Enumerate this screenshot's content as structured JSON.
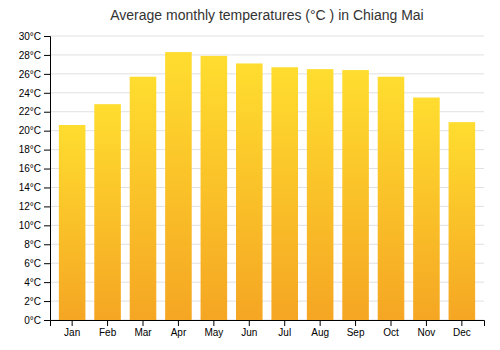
{
  "chart_data": {
    "type": "bar",
    "title": "Average monthly temperatures (°C ) in Chiang Mai",
    "categories": [
      "Jan",
      "Feb",
      "Mar",
      "Apr",
      "May",
      "Jun",
      "Jul",
      "Aug",
      "Sep",
      "Oct",
      "Nov",
      "Dec"
    ],
    "values": [
      20.6,
      22.8,
      25.7,
      28.3,
      27.9,
      27.1,
      26.7,
      26.5,
      26.4,
      25.7,
      23.5,
      20.9
    ],
    "color": "#F5A623",
    "ylim": [
      0,
      30
    ],
    "yticks": [
      {
        "value": 0,
        "label": "0°C"
      },
      {
        "value": 2,
        "label": "2°C"
      },
      {
        "value": 4,
        "label": "4°C"
      },
      {
        "value": 6,
        "label": "6°C"
      },
      {
        "value": 8,
        "label": "8°C"
      },
      {
        "value": 10,
        "label": "10°C"
      },
      {
        "value": 12,
        "label": "12°C"
      },
      {
        "value": 14,
        "label": "14°C"
      },
      {
        "value": 16,
        "label": "16°C"
      },
      {
        "value": 18,
        "label": "18°C"
      },
      {
        "value": 20,
        "label": "20°C"
      },
      {
        "value": 22,
        "label": "22°C"
      },
      {
        "value": 24,
        "label": "24°C"
      },
      {
        "value": 26,
        "label": "26°C"
      },
      {
        "value": 28,
        "label": "28°C"
      },
      {
        "value": 30,
        "label": "30°C"
      }
    ],
    "grid": true
  }
}
